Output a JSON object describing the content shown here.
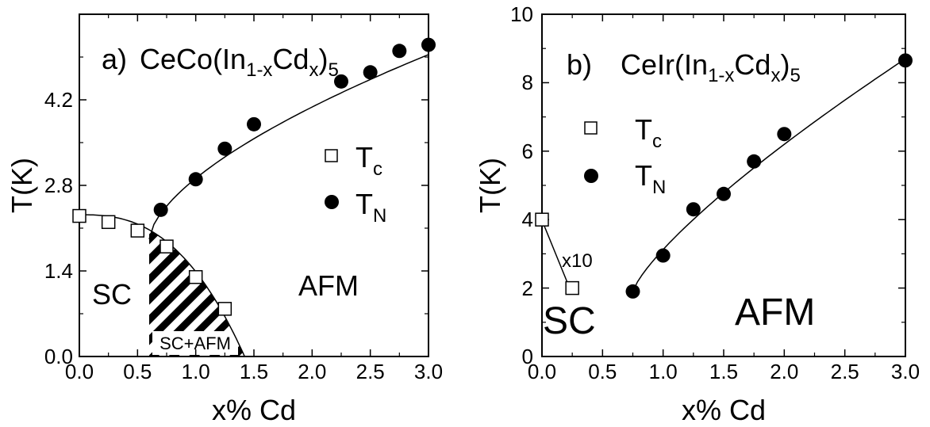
{
  "chart_data": [
    {
      "type": "scatter",
      "title": "a) CeCo(In1-xCdx)5",
      "title_parts": {
        "prefix": "a)",
        "formula_main": "CeCo(In",
        "formula_sub1": "1-x",
        "formula_mid": "Cd",
        "formula_sub2": "x",
        "formula_close": ")",
        "formula_sub3": "5"
      },
      "xlabel": "x% Cd",
      "ylabel": "T(K)",
      "xlim": [
        0.0,
        3.0
      ],
      "ylim": [
        0.0,
        5.6
      ],
      "x_ticks": [
        "0.0",
        "0.5",
        "1.0",
        "1.5",
        "2.0",
        "2.5",
        "3.0"
      ],
      "y_ticks": [
        "0.0",
        "1.4",
        "2.8",
        "4.2"
      ],
      "legend": {
        "placement": "center-right",
        "tc_main": "T",
        "tc_sub": "c",
        "tn_main": "T",
        "tn_sub": "N"
      },
      "series": [
        {
          "name": "Tc",
          "marker": "open-square",
          "x": [
            0.0,
            0.25,
            0.5,
            0.75,
            1.0,
            1.25
          ],
          "y": [
            2.3,
            2.2,
            2.06,
            1.8,
            1.3,
            0.78
          ]
        },
        {
          "name": "TN",
          "marker": "filled-circle",
          "x": [
            0.7,
            1.0,
            1.25,
            1.5,
            2.25,
            2.5,
            2.75,
            3.0
          ],
          "y": [
            2.4,
            2.9,
            3.4,
            3.8,
            4.5,
            4.65,
            5.0,
            5.1
          ]
        }
      ],
      "regions": {
        "sc": "SC",
        "afm": "AFM",
        "coexist": "SC+AFM"
      }
    },
    {
      "type": "scatter",
      "title": "b) CeIr(In1-xCdx)5",
      "title_parts": {
        "prefix": "b)",
        "formula_main": "CeIr(In",
        "formula_sub1": "1-x",
        "formula_mid": "Cd",
        "formula_sub2": "x",
        "formula_close": ")",
        "formula_sub3": "5"
      },
      "xlabel": "x% Cd",
      "ylabel": "T(K)",
      "xlim": [
        0.0,
        3.0
      ],
      "ylim": [
        0,
        10
      ],
      "x_ticks": [
        "0.0",
        "0.5",
        "1.0",
        "1.5",
        "2.0",
        "2.5",
        "3.0"
      ],
      "y_ticks": [
        "0",
        "2",
        "4",
        "6",
        "8",
        "10"
      ],
      "legend": {
        "placement": "upper-left",
        "tc_main": "T",
        "tc_sub": "c",
        "tn_main": "T",
        "tn_sub": "N"
      },
      "series": [
        {
          "name": "Tc",
          "marker": "open-square",
          "x": [
            0.0,
            0.25
          ],
          "y": [
            4.0,
            2.0
          ]
        },
        {
          "name": "TN",
          "marker": "filled-circle",
          "x": [
            0.75,
            1.0,
            1.25,
            1.5,
            1.75,
            2.0,
            3.0
          ],
          "y": [
            1.9,
            2.95,
            4.3,
            4.75,
            5.7,
            6.5,
            8.65
          ]
        }
      ],
      "annotation": "x10",
      "regions": {
        "sc": "SC",
        "afm": "AFM"
      }
    }
  ]
}
